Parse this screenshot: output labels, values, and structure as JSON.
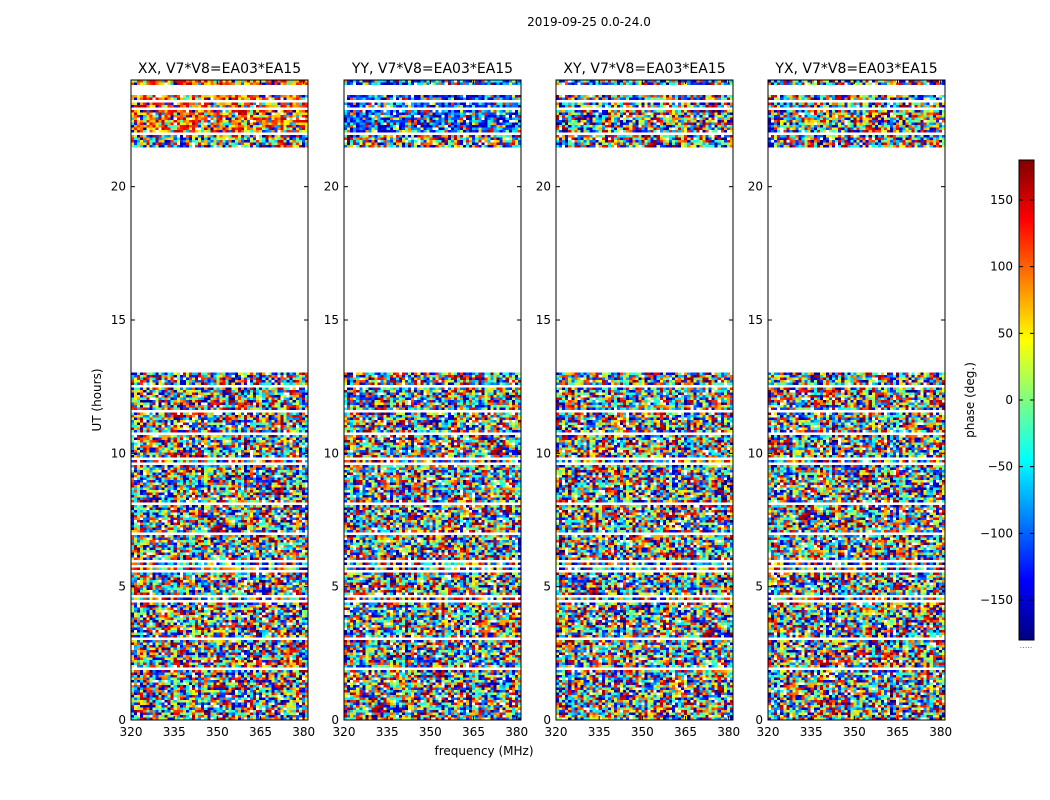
{
  "figure_title": "2019-09-25 0.0-24.0",
  "xlabel": "frequency (MHz)",
  "ylabel": "UT (hours)",
  "colorbar": {
    "label": "phase (deg.)",
    "range": [
      -180,
      180
    ],
    "ticks": [
      -150,
      -100,
      -50,
      0,
      50,
      100,
      150
    ],
    "tick_labels": [
      "−150",
      "−100",
      "−50",
      "0",
      "50",
      "100",
      "150"
    ],
    "colormap": "jet",
    "colors": [
      "#00007f",
      "#0000ff",
      "#007fff",
      "#00ffff",
      "#7fff7f",
      "#ffff00",
      "#ff7f00",
      "#ff0000",
      "#7f0000"
    ]
  },
  "chart_data": [
    {
      "type": "heatmap",
      "title": "XX, V7*V8=EA03*EA15",
      "x_range": [
        320,
        381.5
      ],
      "y_range": [
        0,
        24
      ],
      "x_ticks": [
        320,
        335,
        350,
        365,
        380
      ],
      "y_ticks": [
        0,
        5,
        10,
        15,
        20
      ],
      "data_gaps_ut": [
        [
          13.0,
          21.5
        ]
      ],
      "value_range": [
        -180,
        180
      ],
      "value_units": "phase (deg.)"
    },
    {
      "type": "heatmap",
      "title": "YY, V7*V8=EA03*EA15",
      "x_range": [
        320,
        381.5
      ],
      "y_range": [
        0,
        24
      ],
      "x_ticks": [
        320,
        335,
        350,
        365,
        380
      ],
      "y_ticks": [
        0,
        5,
        10,
        15,
        20
      ],
      "data_gaps_ut": [
        [
          13.0,
          21.5
        ]
      ],
      "value_range": [
        -180,
        180
      ],
      "value_units": "phase (deg.)"
    },
    {
      "type": "heatmap",
      "title": "XY, V7*V8=EA03*EA15",
      "x_range": [
        320,
        381.5
      ],
      "y_range": [
        0,
        24
      ],
      "x_ticks": [
        320,
        335,
        350,
        365,
        380
      ],
      "y_ticks": [
        0,
        5,
        10,
        15,
        20
      ],
      "data_gaps_ut": [
        [
          13.0,
          21.5
        ]
      ],
      "value_range": [
        -180,
        180
      ],
      "value_units": "phase (deg.)"
    },
    {
      "type": "heatmap",
      "title": "YX, V7*V8=EA03*EA15",
      "x_range": [
        320,
        381.5
      ],
      "y_range": [
        0,
        24
      ],
      "x_ticks": [
        320,
        335,
        350,
        365,
        380
      ],
      "y_ticks": [
        0,
        5,
        10,
        15,
        20
      ],
      "data_gaps_ut": [
        [
          13.0,
          21.5
        ]
      ],
      "value_range": [
        -180,
        180
      ],
      "value_units": "phase (deg.)"
    }
  ]
}
